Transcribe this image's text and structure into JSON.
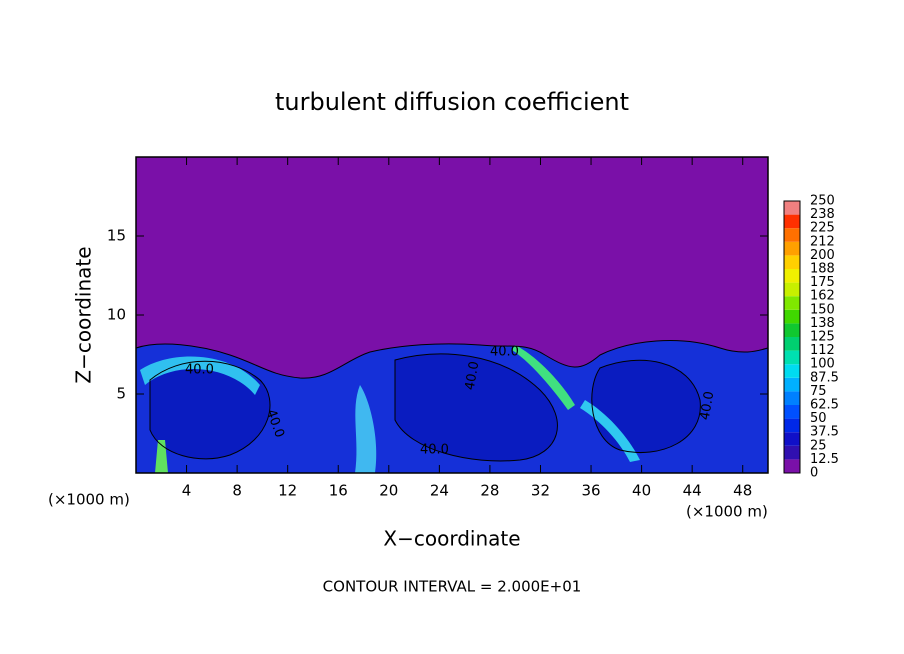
{
  "chart_data": {
    "type": "contour",
    "title": "turbulent diffusion coefficient",
    "xlabel": "X−coordinate",
    "ylabel": "Z−coordinate",
    "unit_label": "(×1000 m)",
    "footer": "CONTOUR INTERVAL = 2.000E+01",
    "contour_label": "40.0",
    "xlim": [
      0,
      50
    ],
    "xticks": [
      4,
      8,
      12,
      16,
      20,
      24,
      28,
      32,
      36,
      40,
      44,
      48
    ],
    "ylim": [
      0,
      20
    ],
    "yticks": [
      5,
      10,
      15
    ],
    "colorbar": {
      "levels": [
        0,
        12.5,
        25,
        37.5,
        50,
        62.5,
        75,
        87.5,
        100,
        112,
        125,
        138,
        150,
        162,
        175,
        188,
        200,
        212,
        225,
        238,
        250
      ],
      "colors": [
        "#7a10a8",
        "#3010b0",
        "#1010c8",
        "#0028e8",
        "#0050ff",
        "#0080ff",
        "#00b0ff",
        "#00dcf0",
        "#00e0b0",
        "#00d070",
        "#10c830",
        "#40d800",
        "#80e800",
        "#c8f000",
        "#f0f000",
        "#ffd000",
        "#ffa000",
        "#ff7000",
        "#ff3000",
        "#f08080"
      ]
    }
  }
}
